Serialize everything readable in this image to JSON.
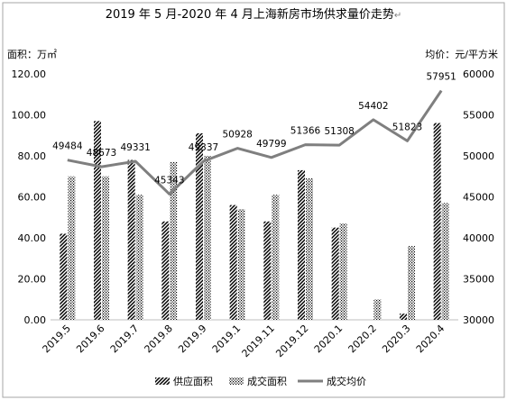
{
  "chart_data": {
    "type": "bar",
    "title": "2019 年 5 月-2020 年 4 月上海新房市场供求量价走势",
    "title_mark": "↵",
    "ylabel_left": "面积：万㎡",
    "ylabel_right": "均价：元/平方米",
    "categories": [
      "2019.5",
      "2019.6",
      "2019.7",
      "2019.8",
      "2019.9",
      "2019.1",
      "2019.11",
      "2019.12",
      "2020.1",
      "2020.2",
      "2020.3",
      "2020.4"
    ],
    "ylim_left": [
      0,
      120
    ],
    "ylim_right": [
      30000,
      60000
    ],
    "yticks_left": [
      "0.00",
      "20.00",
      "40.00",
      "60.00",
      "80.00",
      "100.00",
      "120.00"
    ],
    "yticks_right": [
      "30000",
      "35000",
      "40000",
      "45000",
      "50000",
      "55000",
      "60000"
    ],
    "legend_position": "bottom",
    "grid": false,
    "series": [
      {
        "name": "供应面积",
        "kind": "bar",
        "pattern": "diagonal",
        "values": [
          42,
          97,
          78,
          48,
          91,
          56,
          48,
          73,
          45,
          0,
          3,
          96
        ]
      },
      {
        "name": "成交面积",
        "kind": "bar",
        "pattern": "dotted",
        "values": [
          70,
          70,
          61,
          77,
          80,
          54,
          61,
          69,
          47,
          10,
          36,
          57
        ]
      },
      {
        "name": "成交均价",
        "kind": "line",
        "axis": "right",
        "values": [
          49484,
          48673,
          49331,
          45343,
          49337,
          50928,
          49799,
          51366,
          51308,
          54402,
          51823,
          57951
        ]
      }
    ],
    "data_labels": [
      "49484",
      "48673",
      "49331",
      "45343",
      "49337",
      "50928",
      "49799",
      "51366",
      "51308",
      "54402",
      "51823",
      "57951"
    ],
    "colors": {
      "line": "#7f7f7f",
      "bar": "#000000",
      "axis": "#bfbfbf",
      "frame": "#a6a6a6"
    }
  }
}
